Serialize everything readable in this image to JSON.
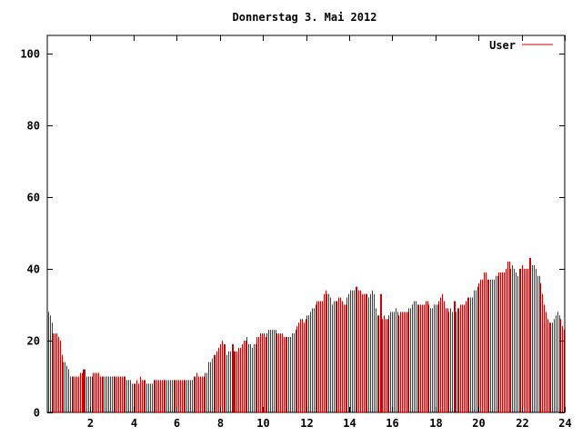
{
  "chart_data": {
    "type": "bar",
    "title": "Donnerstag 3. Mai 2012",
    "xlabel": "",
    "ylabel": "",
    "xlim": [
      0,
      24
    ],
    "ylim": [
      0,
      105
    ],
    "xticks": [
      2,
      4,
      6,
      8,
      10,
      12,
      14,
      16,
      18,
      20,
      22,
      24
    ],
    "yticks": [
      0,
      20,
      40,
      60,
      80,
      100
    ],
    "grid": false,
    "legend_position": "top-right",
    "colors": {
      "series": "#cc0000",
      "axes": "#000000"
    },
    "series": [
      {
        "name": "User",
        "values": [
          28,
          27,
          25,
          22,
          22,
          22,
          21,
          20,
          16,
          14,
          14,
          13,
          12,
          10,
          10,
          10,
          10,
          10,
          10,
          11,
          11,
          12,
          11,
          10,
          10,
          10,
          10,
          11,
          11,
          11,
          11,
          10,
          10,
          10,
          10,
          10,
          10,
          10,
          10,
          10,
          10,
          10,
          10,
          10,
          10,
          10,
          10,
          9,
          9,
          9,
          8,
          8,
          8,
          9,
          8,
          10,
          9,
          9,
          9,
          8,
          8,
          8,
          8,
          9,
          9,
          9,
          9,
          9,
          9,
          9,
          9,
          9,
          9,
          9,
          9,
          9,
          9,
          9,
          9,
          9,
          9,
          9,
          9,
          9,
          9,
          9,
          9,
          10,
          10,
          11,
          10,
          10,
          10,
          10,
          11,
          11,
          14,
          14,
          15,
          16,
          16,
          17,
          18,
          19,
          20,
          19,
          19,
          16,
          17,
          17,
          17,
          17,
          17,
          17,
          18,
          18,
          19,
          20,
          20,
          21,
          19,
          19,
          18,
          19,
          19,
          21,
          21,
          22,
          22,
          22,
          21,
          22,
          23,
          23,
          23,
          23,
          23,
          22,
          22,
          22,
          22,
          21,
          21,
          21,
          21,
          21,
          22,
          22,
          23,
          24,
          25,
          26,
          26,
          25,
          26,
          27,
          27,
          28,
          29,
          29,
          30,
          31,
          31,
          31,
          31,
          33,
          34,
          33,
          33,
          32,
          30,
          31,
          31,
          31,
          32,
          32,
          31,
          30,
          30,
          32,
          33,
          34,
          34,
          34,
          35,
          35,
          34,
          34,
          33,
          33,
          33,
          33,
          32,
          33,
          34,
          33,
          29,
          27,
          27,
          27,
          26,
          27,
          26,
          26,
          27,
          28,
          28,
          28,
          29,
          28,
          27,
          28,
          28,
          28,
          28,
          28,
          29,
          29,
          30,
          31,
          31,
          30,
          30,
          30,
          30,
          30,
          31,
          31,
          30,
          29,
          29,
          30,
          30,
          30,
          31,
          32,
          33,
          31,
          29,
          29,
          28,
          29,
          28,
          28,
          28,
          29,
          29,
          30,
          30,
          30,
          31,
          32,
          32,
          32,
          32,
          34,
          34,
          35,
          36,
          37,
          37,
          39,
          39,
          37,
          37,
          37,
          37,
          37,
          38,
          38,
          39,
          39,
          39,
          39,
          40,
          42,
          42,
          40,
          41,
          40,
          39,
          38,
          40,
          40,
          41,
          40,
          40,
          40,
          43,
          43,
          41,
          41,
          40,
          38,
          38,
          36,
          33,
          30,
          28,
          26,
          25,
          25,
          25,
          26,
          27,
          28,
          27,
          26,
          24,
          23
        ]
      }
    ],
    "markers": [
      {
        "x": 1.75,
        "value": 12
      },
      {
        "x": 8.6,
        "value": 19
      },
      {
        "x": 15.5,
        "value": 33
      },
      {
        "x": 18.9,
        "value": 31
      },
      {
        "x": 22.4,
        "value": 41
      }
    ]
  }
}
